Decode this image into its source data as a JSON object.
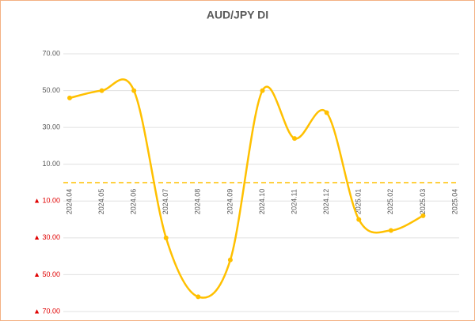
{
  "chart_data": {
    "type": "line",
    "title": "AUD/JPY  DI",
    "categories": [
      "2024.04",
      "2024.05",
      "2024.06",
      "2024.07",
      "2024.08",
      "2024.09",
      "2024.10",
      "2024.11",
      "2024.12",
      "2025.01",
      "2025.02",
      "2025.03",
      "2025.04"
    ],
    "values": [
      46,
      50,
      50,
      -30,
      -62,
      -42,
      50,
      24,
      38,
      -20,
      -26,
      -18,
      null
    ],
    "color": "#ffc000",
    "ylim": [
      -70,
      70
    ],
    "yticks": [
      {
        "value": -70,
        "label": "▲ 70.00"
      },
      {
        "value": -50,
        "label": "▲ 50.00"
      },
      {
        "value": -30,
        "label": "▲ 30.00"
      },
      {
        "value": -10,
        "label": "▲ 10.00"
      },
      {
        "value": 10,
        "label": "10.00"
      },
      {
        "value": 30,
        "label": "30.00"
      },
      {
        "value": 50,
        "label": "50.00"
      },
      {
        "value": 70,
        "label": "70.00"
      }
    ],
    "grid": true,
    "smooth": true
  }
}
